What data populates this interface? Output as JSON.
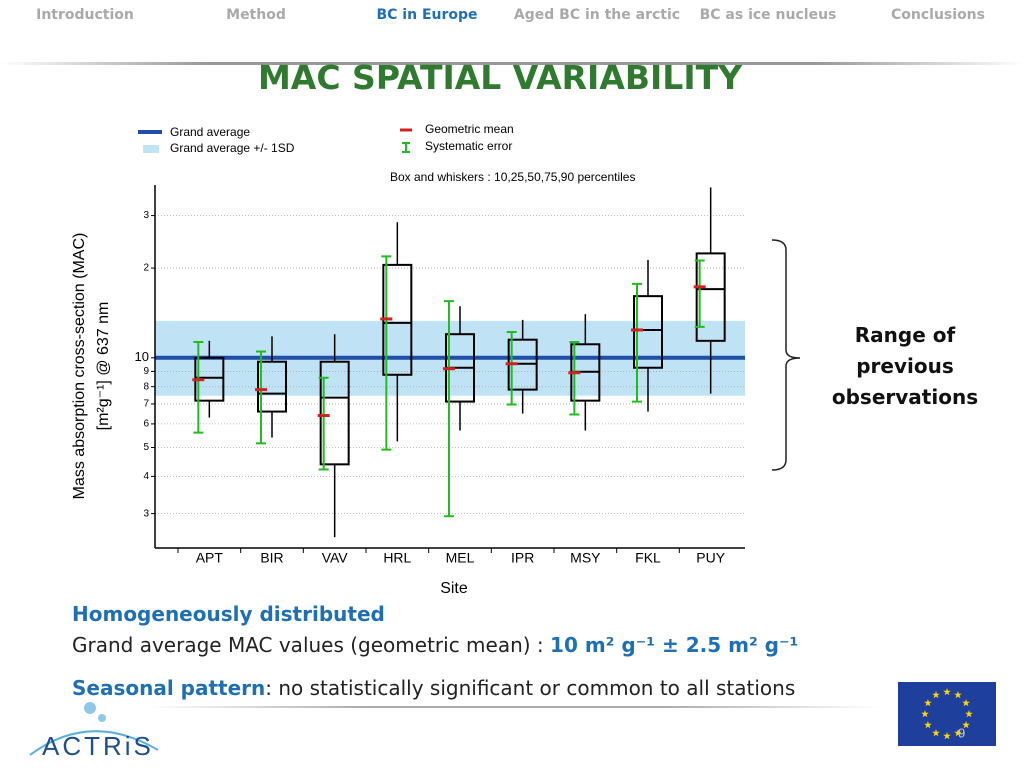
{
  "nav": [
    "Introduction",
    "Method",
    "BC in Europe",
    "Aged BC in the arctic",
    "BC as ice nucleus",
    "Conclusions"
  ],
  "nav_active": 2,
  "title": "MAC SPATIAL VARIABILITY",
  "chart_data": {
    "type": "box",
    "legend": [
      "Grand average",
      "Grand average +/-  1SD",
      "Geometric mean",
      "Systematic error"
    ],
    "subtitle": "Box and whiskers : 10,25,50,75,90 percentiles",
    "x_label": "Site",
    "y_label": [
      "Mass absorption cross-section (MAC)",
      "[m²g⁻¹] @ 637 nm"
    ],
    "log_y": true,
    "grid": true,
    "ylim": [
      2.3,
      38
    ],
    "yticks": [
      3,
      4,
      5,
      6,
      7,
      8,
      9,
      10,
      {
        "value": 20,
        "label": "2"
      },
      {
        "value": 30,
        "label": "3"
      }
    ],
    "grand_average": 10,
    "grand_average_band": [
      7.46,
      13.3
    ],
    "colors": {
      "average": "#1f4fa8",
      "band": "#bfe3f5",
      "mean": "#d62020",
      "error": "#22bb22",
      "box": "#000000"
    },
    "categories": [
      "APT",
      "BIR",
      "VAV",
      "HRL",
      "MEL",
      "IPR",
      "MSY",
      "FKL",
      "PUY"
    ],
    "p10": [
      6.3,
      5.4,
      2.5,
      5.24,
      5.7,
      6.5,
      5.7,
      6.6,
      7.58
    ],
    "p25": [
      7.18,
      6.6,
      4.39,
      8.77,
      7.13,
      7.82,
      7.18,
      9.26,
      11.4
    ],
    "median": [
      8.57,
      7.58,
      7.35,
      13.1,
      9.26,
      9.55,
      8.98,
      12.4,
      17.0
    ],
    "p75": [
      10,
      9.7,
      9.7,
      20.5,
      12.0,
      11.5,
      11.1,
      16.1,
      22.4
    ],
    "p90": [
      11.4,
      11.8,
      12.0,
      28.5,
      14.9,
      13.4,
      14.0,
      21.3,
      37.3
    ],
    "geometric_mean": [
      8.44,
      7.82,
      6.4,
      13.5,
      9.19,
      9.55,
      8.91,
      12.4,
      17.3
    ],
    "error_low": [
      5.61,
      5.16,
      4.22,
      4.92,
      2.94,
      6.97,
      6.45,
      7.13,
      12.7
    ],
    "error_high": [
      11.3,
      10.5,
      8.57,
      21.9,
      15.5,
      12.2,
      11.3,
      17.7,
      21.2
    ]
  },
  "annotation": "Range of previous observations",
  "text": {
    "line1": "Homogeneously distributed",
    "line2_start": "Grand average MAC values (geometric mean) : ",
    "line2_value": "10 m² g⁻¹ ± 2.5 m² g⁻¹",
    "line3_key": "Seasonal pattern",
    "line3_rest": ": no statistically significant or common to all stations"
  },
  "logo": "ACTRiS",
  "page_number": "9"
}
